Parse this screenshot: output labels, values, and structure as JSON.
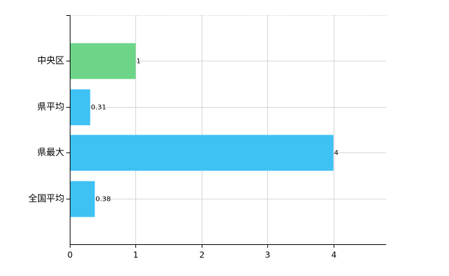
{
  "chart_data": {
    "type": "barh",
    "categories": [
      "中央区",
      "県平均",
      "県最大",
      "全国平均"
    ],
    "values": [
      1,
      0.31,
      4,
      0.38
    ],
    "colors": [
      "#6dd588",
      "#3ec1f3",
      "#3ec1f3",
      "#3ec1f3"
    ],
    "xlim": [
      0,
      4.8
    ],
    "xticks": [
      0,
      1,
      2,
      3,
      4
    ],
    "grid": true
  }
}
